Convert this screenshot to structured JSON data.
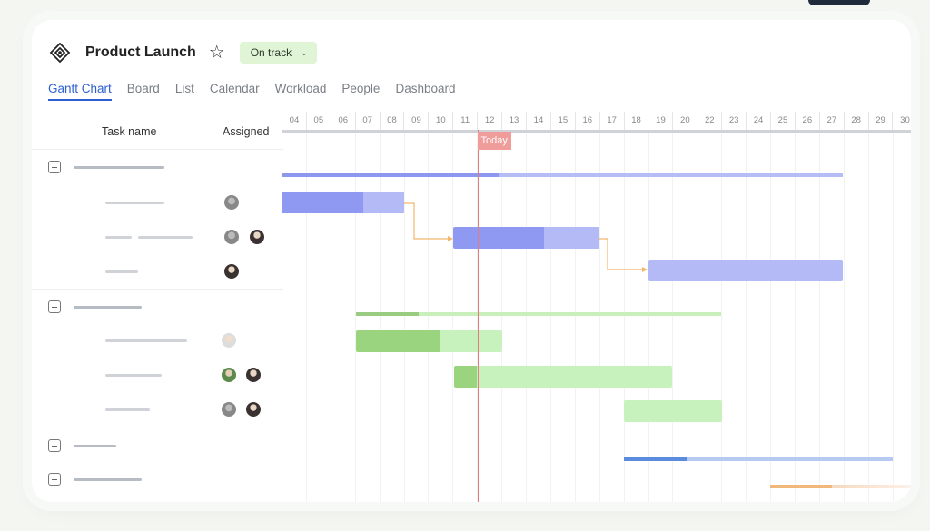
{
  "project": {
    "title": "Product Launch",
    "status": "On track"
  },
  "tabs": [
    "Gantt Chart",
    "Board",
    "List",
    "Calendar",
    "Workload",
    "People",
    "Dashboard"
  ],
  "active_tab": "Gantt Chart",
  "columns": {
    "task_name": "Task name",
    "assigned": "Assigned"
  },
  "days": [
    "04",
    "05",
    "06",
    "07",
    "08",
    "09",
    "10",
    "11",
    "12",
    "13",
    "14",
    "15",
    "16",
    "17",
    "18",
    "19",
    "20",
    "22",
    "23",
    "24",
    "25",
    "26",
    "27",
    "28",
    "29",
    "30"
  ],
  "today_label": "Today",
  "colors": {
    "purple": "#9099f2",
    "purple_light": "#b0b8f5",
    "green": "#9ad47e",
    "green_light": "#c8f2bd",
    "blue": "#5b8bdc",
    "orange": "#f0b87a",
    "today": "#e77b7b"
  }
}
